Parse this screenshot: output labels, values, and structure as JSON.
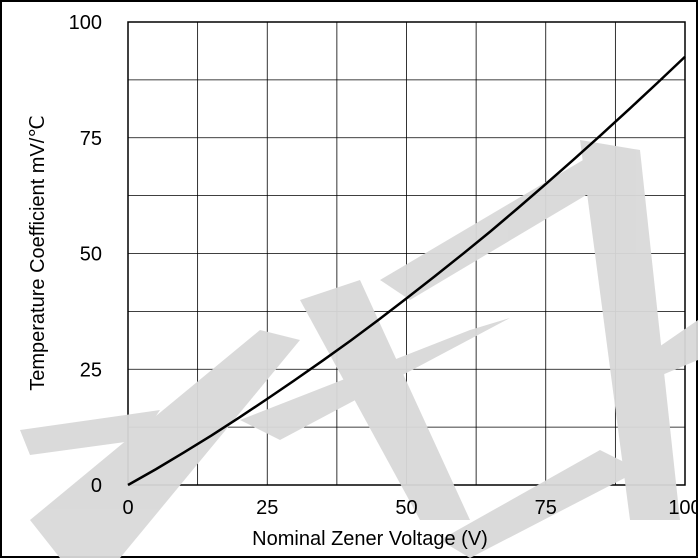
{
  "chart_data": {
    "type": "line",
    "title": "",
    "xlabel": "Nominal Zener Voltage (V)",
    "ylabel": "Temperature Coefficient mV/℃",
    "xlim": [
      0,
      100
    ],
    "ylim": [
      0,
      100
    ],
    "x_ticks": [
      "0",
      "25",
      "50",
      "75",
      "100"
    ],
    "y_ticks": [
      "0",
      "25",
      "50",
      "75",
      "100"
    ],
    "grid": true,
    "grid_divisions_x": 8,
    "grid_divisions_y": 8,
    "legend": "none",
    "series": [
      {
        "color": "#000000",
        "x": [
          0,
          5,
          10,
          15,
          20,
          25,
          30,
          35,
          40,
          45,
          50,
          55,
          60,
          65,
          70,
          75,
          80,
          85,
          90,
          95,
          100
        ],
        "y": [
          0,
          3.4,
          7.0,
          10.7,
          14.6,
          18.6,
          22.7,
          26.9,
          31.2,
          35.7,
          40.3,
          45.0,
          49.8,
          54.7,
          59.8,
          65.0,
          70.3,
          75.7,
          81.2,
          86.8,
          92.5
        ]
      }
    ]
  },
  "colors": {
    "grid": "#000000",
    "line": "#000000",
    "watermark": "#d9d9d9",
    "background": "#ffffff"
  }
}
